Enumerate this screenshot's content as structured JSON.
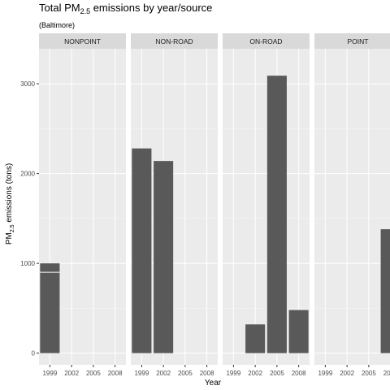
{
  "chart_data": {
    "type": "bar",
    "title": "Total PM",
    "title_sub": "2.5",
    "title_rest": " emissions by year/source",
    "subtitle": "(Baltimore)",
    "xlabel": "Year",
    "ylabel_pre": "PM",
    "ylabel_sub": "2.5",
    "ylabel_post": " emissions (tons)",
    "categories": [
      "1999",
      "2002",
      "2005",
      "2008"
    ],
    "y_ticks": [
      0,
      1000,
      2000,
      3000
    ],
    "ylim": [
      -130,
      3390
    ],
    "grid": true,
    "colors": {
      "bar": "#595959",
      "panel": "#ebebeb",
      "strip": "#d9d9d9",
      "grid": "#ffffff"
    },
    "facets": [
      {
        "name": "NONPOINT",
        "values": [
          1000,
          null,
          null,
          null
        ],
        "segments": [
          [
            900,
            100
          ]
        ]
      },
      {
        "name": "NON-ROAD",
        "values": [
          2280,
          2140,
          null,
          null
        ]
      },
      {
        "name": "ON-ROAD",
        "values": [
          null,
          320,
          3090,
          480
        ]
      },
      {
        "name": "POINT",
        "values": [
          null,
          null,
          null,
          1380
        ]
      }
    ]
  }
}
